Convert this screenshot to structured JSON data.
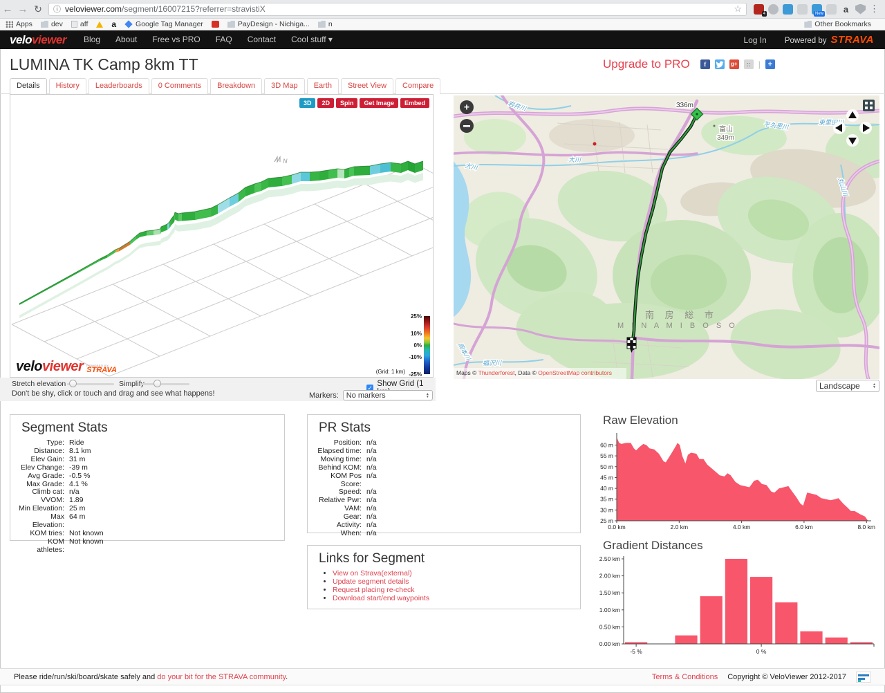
{
  "browser": {
    "url_domain": "veloviewer.com",
    "url_rest": "/segment/16007215?referrer=stravistiX",
    "bookmarks_left": [
      {
        "icon": "apps",
        "label": "Apps"
      },
      {
        "icon": "folder",
        "label": "dev"
      },
      {
        "icon": "page",
        "label": "aff"
      },
      {
        "icon": "drive",
        "label": ""
      },
      {
        "icon": "amazon",
        "label": "a"
      },
      {
        "icon": "gtm",
        "label": "Google Tag Manager"
      },
      {
        "icon": "redapp",
        "label": ""
      },
      {
        "icon": "folder",
        "label": "PayDesign - Nichiga..."
      },
      {
        "icon": "folder",
        "label": "n"
      }
    ],
    "other_bookmarks": "Other Bookmarks",
    "extensions": [
      {
        "style": "red",
        "badge": "4"
      },
      {
        "style": "circle",
        "badge": ""
      },
      {
        "style": "blue",
        "badge": ""
      },
      {
        "style": "dim",
        "badge": ""
      },
      {
        "style": "blue",
        "badge": "New"
      },
      {
        "style": "dim",
        "badge": ""
      },
      {
        "style": "letter",
        "label": "a",
        "badge": ""
      },
      {
        "style": "shield",
        "badge": ""
      }
    ]
  },
  "header": {
    "logo_part1": "velo",
    "logo_part2": "viewer",
    "nav": [
      "Blog",
      "About",
      "Free vs PRO",
      "FAQ",
      "Contact",
      "Cool stuff ▾"
    ],
    "login": "Log In",
    "powered_by": "Powered by",
    "strava": "STRAVA"
  },
  "page": {
    "title": "LUMINA TK Camp 8km TT",
    "upgrade": "Upgrade to PRO"
  },
  "tabs": [
    {
      "label": "Details",
      "active": true
    },
    {
      "label": "History"
    },
    {
      "label": "Leaderboards"
    },
    {
      "label": "0 Comments"
    },
    {
      "label": "Breakdown"
    },
    {
      "label": "3D Map"
    },
    {
      "label": "Earth"
    },
    {
      "label": "Street View"
    },
    {
      "label": "Compare"
    }
  ],
  "viewer3d": {
    "buttons": [
      {
        "label": "3D",
        "active": true
      },
      {
        "label": "2D",
        "active": false
      },
      {
        "label": "Spin",
        "active": false
      },
      {
        "label": "Get Image",
        "active": false
      },
      {
        "label": "Embed",
        "active": false
      }
    ],
    "legend_ticks": [
      {
        "label": "25%",
        "pos": 0
      },
      {
        "label": "10%",
        "pos": 30
      },
      {
        "label": "0%",
        "pos": 50
      },
      {
        "label": "-10%",
        "pos": 70
      },
      {
        "label": "-25%",
        "pos": 100
      }
    ],
    "grid_note": "(Grid: 1 km)",
    "compass": "N",
    "watermark": {
      "part1": "velo",
      "part2": "viewer",
      "powered": "POWERED BY",
      "strava": "STRAVA"
    },
    "stretch_label": "Stretch elevation",
    "simplify_label": "Simplify",
    "hint": "Don't be shy, click or touch and drag and see what happens!",
    "show_grid_label": "Show Grid (1 km)",
    "markers_label": "Markers:",
    "markers_value": "No markers",
    "ribbon_points": [
      [
        13,
        302
      ],
      [
        100,
        254
      ],
      [
        130,
        237
      ],
      [
        140,
        232
      ],
      [
        152,
        224
      ],
      [
        157,
        222
      ],
      [
        173,
        212
      ],
      [
        182,
        204
      ],
      [
        187,
        200
      ],
      [
        197,
        197
      ],
      [
        207,
        196
      ],
      [
        217,
        194
      ],
      [
        218,
        191
      ],
      [
        227,
        187
      ],
      [
        230,
        184
      ],
      [
        233,
        179
      ],
      [
        237,
        174
      ],
      [
        238,
        170
      ],
      [
        243,
        172
      ],
      [
        248,
        171
      ],
      [
        267,
        169
      ],
      [
        290,
        164
      ],
      [
        300,
        159
      ],
      [
        317,
        149
      ],
      [
        330,
        142
      ],
      [
        340,
        134
      ],
      [
        353,
        129
      ],
      [
        363,
        126
      ],
      [
        373,
        121
      ],
      [
        393,
        119
      ],
      [
        407,
        116
      ],
      [
        420,
        112
      ],
      [
        433,
        112
      ],
      [
        447,
        111
      ],
      [
        460,
        109
      ],
      [
        473,
        107
      ],
      [
        483,
        108
      ],
      [
        490,
        106
      ],
      [
        497,
        104
      ],
      [
        520,
        103
      ],
      [
        535,
        100
      ],
      [
        550,
        98
      ],
      [
        565,
        100
      ],
      [
        575,
        96
      ],
      [
        585,
        100
      ],
      [
        597,
        96
      ]
    ],
    "ribbon_colors": [
      "#2fae3e",
      "#3cb94a",
      "#2fae3e",
      "#44c050",
      "#e0a23c",
      "#cf7a30",
      "#49c355",
      "#37b545",
      "#2fae3e",
      "#5ecb68",
      "#a8e0ae",
      "#42bf4e",
      "#2fae3e",
      "#7fd4e2",
      "#39b747",
      "#2fae3e",
      "#46c152",
      "#35b243",
      "#58c963",
      "#2fae3e",
      "#40bd4c",
      "#36b444",
      "#9fdee6",
      "#6fcede",
      "#3ab848",
      "#2fae3e",
      "#4cc457",
      "#38b646",
      "#2fae3e",
      "#44c050",
      "#8fd9e4",
      "#5ac8d8",
      "#36b444",
      "#2fae3e",
      "#41be4d",
      "#b5e5ba",
      "#33b041",
      "#49c355",
      "#2fae3e",
      "#6fcede",
      "#4cc0d2",
      "#38b646",
      "#2fae3e",
      "#22a532",
      "#2fae3e"
    ]
  },
  "map_panel": {
    "style_value": "Landscape",
    "attribution_prefix": "Maps © ",
    "attribution_link1": "Thunderforest",
    "attribution_mid": ", Data © ",
    "attribution_link2": "OpenStreetMap contributors",
    "labels": {
      "start_elev": "336m",
      "peak_name": "富山",
      "peak_elev": "349m",
      "city_jp": "南 房 総 市",
      "city_en": "M I N A M I B O S O",
      "river_iwai": "岩井川",
      "river_okawa": "大川",
      "river_heguri": "平久里川",
      "river_higashisatoda": "東里田川",
      "river_maruyama": "丸山川",
      "river_fukuzawa": "福沢川",
      "river_okamoto": "岡本川"
    }
  },
  "segment_stats": {
    "title": "Segment Stats",
    "rows": [
      [
        "Type:",
        "Ride"
      ],
      [
        "Distance:",
        "8.1 km"
      ],
      [
        "Elev Gain:",
        "31 m"
      ],
      [
        "Elev Change:",
        "-39 m"
      ],
      [
        "Avg Grade:",
        "-0.5 %"
      ],
      [
        "Max Grade:",
        "4.1 %"
      ],
      [
        "Climb cat:",
        "n/a"
      ],
      [
        "VVOM:",
        "1.89"
      ],
      [
        "Min Elevation:",
        "25 m"
      ],
      [
        "Max Elevation:",
        "64 m"
      ],
      [
        "KOM tries:",
        "Not known"
      ],
      [
        "KOM athletes:",
        "Not known"
      ]
    ]
  },
  "pr_stats": {
    "title": "PR Stats",
    "rows": [
      [
        "Position:",
        "n/a"
      ],
      [
        "Elapsed time:",
        "n/a"
      ],
      [
        "Moving time:",
        "n/a"
      ],
      [
        "Behind KOM:",
        "n/a"
      ],
      [
        "KOM Pos Score:",
        "n/a"
      ],
      [
        "Speed:",
        "n/a"
      ],
      [
        "Relative Pwr:",
        "n/a"
      ],
      [
        "VAM:",
        "n/a"
      ],
      [
        "Gear:",
        "n/a"
      ],
      [
        "Activity:",
        "n/a"
      ],
      [
        "When:",
        "n/a"
      ]
    ]
  },
  "links_panel": {
    "title": "Links for Segment",
    "items": [
      "View on Strava(external)",
      "Update segment details",
      "Request placing re-check",
      "Download start/end waypoints"
    ]
  },
  "chart_data": [
    {
      "id": "raw_elevation",
      "type": "area",
      "title": "Raw Elevation",
      "x": [
        0,
        0.08,
        0.15,
        0.3,
        0.45,
        0.55,
        0.62,
        0.72,
        0.85,
        0.95,
        1.05,
        1.2,
        1.35,
        1.5,
        1.57,
        1.7,
        1.85,
        1.95,
        2.02,
        2.1,
        2.2,
        2.28,
        2.38,
        2.55,
        2.65,
        2.78,
        2.9,
        3.1,
        3.3,
        3.45,
        3.55,
        3.65,
        3.8,
        3.95,
        4.1,
        4.25,
        4.4,
        4.52,
        4.65,
        4.8,
        4.95,
        5.05,
        5.2,
        5.35,
        5.5,
        5.62,
        5.75,
        5.88,
        5.97,
        6.1,
        6.25,
        6.4,
        6.55,
        6.7,
        6.85,
        7.0,
        7.1,
        7.25,
        7.4,
        7.5,
        7.62,
        7.8,
        7.95,
        8.05
      ],
      "y": [
        63.5,
        61,
        60.5,
        61,
        61,
        58.5,
        57.5,
        59,
        60.5,
        60,
        58.5,
        58,
        56,
        52.5,
        52,
        55,
        58.5,
        61,
        60,
        55,
        51.5,
        55.5,
        56.5,
        56,
        53.5,
        53.5,
        51,
        48.5,
        46,
        45.5,
        47,
        46,
        43,
        41.5,
        41,
        40.5,
        43.5,
        44,
        42,
        41.5,
        38.5,
        38,
        40,
        40.5,
        41,
        38.5,
        36,
        33,
        32,
        38,
        37.5,
        37,
        35.5,
        35,
        34.5,
        35,
        35.5,
        33,
        31,
        29.5,
        29.5,
        28,
        27,
        25
      ],
      "xlim": [
        0,
        8.15
      ],
      "ylim": [
        25,
        64
      ],
      "xticks": [
        {
          "v": 0,
          "label": "0.0 km"
        },
        {
          "v": 2,
          "label": "2.0 km"
        },
        {
          "v": 4,
          "label": "4.0 km"
        },
        {
          "v": 6,
          "label": "6.0 km"
        },
        {
          "v": 8,
          "label": "8.0 km"
        }
      ],
      "yticks": [
        {
          "v": 25,
          "label": "25 m"
        },
        {
          "v": 30,
          "label": "30 m"
        },
        {
          "v": 35,
          "label": "35 m"
        },
        {
          "v": 40,
          "label": "40 m"
        },
        {
          "v": 45,
          "label": "45 m"
        },
        {
          "v": 50,
          "label": "50 m"
        },
        {
          "v": 55,
          "label": "55 m"
        },
        {
          "v": 60,
          "label": "60 m"
        }
      ],
      "fill": "#f8566b"
    },
    {
      "id": "gradient_distances",
      "type": "bar",
      "title": "Gradient Distances",
      "categories": [
        -5,
        -4,
        -3,
        -2,
        -1,
        0,
        1,
        2,
        3,
        4
      ],
      "values": [
        0.05,
        0,
        0.25,
        1.4,
        2.5,
        1.97,
        1.22,
        0.37,
        0.19,
        0.05
      ],
      "ylim": [
        0,
        2.5
      ],
      "xticks": [
        {
          "i": 0,
          "label": "-5 %"
        },
        {
          "i": 5,
          "label": "0 %"
        }
      ],
      "yticks": [
        {
          "v": 0,
          "label": "0.00 km"
        },
        {
          "v": 0.5,
          "label": "0.50 km"
        },
        {
          "v": 1,
          "label": "1.00 km"
        },
        {
          "v": 1.5,
          "label": "1.50 km"
        },
        {
          "v": 2,
          "label": "2.00 km"
        },
        {
          "v": 2.5,
          "label": "2.50 km"
        }
      ],
      "fill": "#f8566b"
    }
  ],
  "footer": {
    "safety_prefix": "Please ride/run/ski/board/skate safely and ",
    "safety_link": "do your bit for the STRAVA community",
    "safety_suffix": ".",
    "terms": "Terms & Conditions",
    "copyright": "Copyright © VeloViewer 2012-2017"
  }
}
